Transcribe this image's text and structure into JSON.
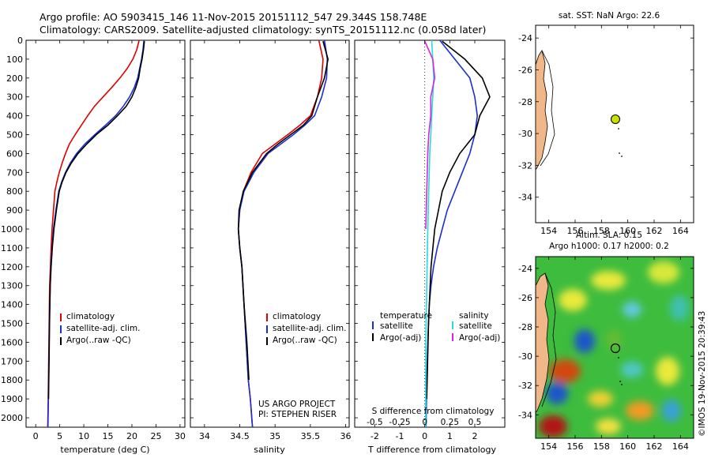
{
  "header": {
    "line1": "Argo profile: AO 5903415_146 11-Nov-2015 20151112_547 29.344S 158.748E",
    "line2": "Climatology: CARS2009. Satellite-adjusted climatology: synTS_20151112.nc (0.058d later)"
  },
  "colors": {
    "climatology": "#dd0000",
    "satellite": "#1a2fd0",
    "argo": "#000000",
    "sat_salinity": "#22dddd",
    "argo_salinity": "#dd22dd",
    "land": "#f0b888"
  },
  "depth_ticks": [
    "0",
    "100",
    "200",
    "300",
    "400",
    "500",
    "600",
    "700",
    "800",
    "900",
    "1000",
    "1100",
    "1200",
    "1300",
    "1400",
    "1500",
    "1600",
    "1700",
    "1800",
    "1900",
    "2000"
  ],
  "legend_profile": [
    "climatology",
    "satellite-adj. clim.",
    "Argo(..raw -QC)"
  ],
  "legend_diff": {
    "temperature_header": "temperature",
    "salinity_header": "salinity",
    "temperature_items": [
      "satellite",
      "Argo(-adj)"
    ],
    "salinity_items": [
      "satellite",
      "Argo(-adj)"
    ]
  },
  "panel_temperature": {
    "xlabel": "temperature (deg C)",
    "xticks": [
      "0",
      "5",
      "10",
      "15",
      "20",
      "25",
      "30"
    ]
  },
  "panel_salinity": {
    "xlabel": "salinity",
    "xticks": [
      "34",
      "34.5",
      "35",
      "35.5",
      "36"
    ],
    "note1": "US ARGO PROJECT",
    "note2": "PI: STEPHEN RISER"
  },
  "panel_diff": {
    "top_label": "S difference from climatology",
    "top_ticks": [
      "-0.5",
      "-0.25",
      "0",
      "0.25",
      "0.5"
    ],
    "bottom_ticks": [
      "-2",
      "-1",
      "0",
      "1",
      "2"
    ],
    "xlabel": "T difference from climatology"
  },
  "map_sst": {
    "title": "sat. SST: NaN Argo: 22.6",
    "yticks": [
      "-24",
      "-26",
      "-28",
      "-30",
      "-32",
      "-34"
    ],
    "xticks": [
      "154",
      "156",
      "158",
      "160",
      "162",
      "164"
    ]
  },
  "map_sla": {
    "title1": "Altim. SLA: 0.15",
    "title2": "Argo h1000: 0.17 h2000: 0.2",
    "yticks": [
      "-24",
      "-26",
      "-28",
      "-30",
      "-32",
      "-34"
    ],
    "xticks": [
      "154",
      "156",
      "158",
      "160",
      "162",
      "164"
    ],
    "side_text": "©IMOS 19-Nov-2015 20:39:43"
  },
  "chart_data": [
    {
      "type": "line",
      "xlabel": "temperature (deg C)",
      "xlim": [
        -2,
        31
      ],
      "ylim": [
        2050,
        0
      ],
      "series": [
        {
          "name": "climatology",
          "x": [
            21.5,
            21,
            20.2,
            19,
            17.5,
            15.8,
            14,
            12.2,
            10.8,
            9.5,
            8.2,
            7,
            6.2,
            5.5,
            4.9,
            4.4,
            4,
            3.7,
            3.4,
            3.2,
            3.05,
            2.9,
            2.8,
            2.7,
            2.6,
            2.5
          ],
          "y": [
            0,
            50,
            100,
            150,
            200,
            250,
            300,
            350,
            400,
            450,
            500,
            550,
            600,
            650,
            700,
            750,
            800,
            900,
            1000,
            1100,
            1200,
            1300,
            1500,
            1700,
            1900,
            2050
          ]
        },
        {
          "name": "satellite-adj. clim.",
          "x": [
            22.5,
            22.3,
            22,
            21.6,
            21.2,
            20.5,
            19.5,
            18.2,
            16.6,
            14.5,
            12.3,
            10.2,
            8.5,
            7.2,
            6.2,
            5.4,
            4.8,
            4.2,
            3.7,
            3.4,
            3.15,
            3,
            2.85,
            2.75,
            2.65,
            2.55
          ],
          "y": [
            0,
            50,
            100,
            150,
            200,
            250,
            300,
            350,
            400,
            450,
            500,
            550,
            600,
            650,
            700,
            750,
            800,
            900,
            1000,
            1100,
            1200,
            1300,
            1500,
            1700,
            1900,
            2050
          ]
        },
        {
          "name": "Argo(..raw -QC)",
          "x": [
            22.6,
            22.4,
            22.1,
            21.7,
            21.4,
            20.8,
            20,
            18.8,
            17,
            15,
            12.6,
            10.6,
            8.8,
            7.4,
            6.3,
            5.5,
            4.9,
            4.3,
            3.8,
            3.45,
            3.2,
            3.02,
            2.88,
            2.77,
            2.67
          ],
          "y": [
            5,
            50,
            100,
            150,
            200,
            250,
            300,
            350,
            400,
            450,
            500,
            550,
            600,
            650,
            700,
            750,
            800,
            900,
            1000,
            1100,
            1200,
            1300,
            1500,
            1700,
            1900
          ]
        }
      ]
    },
    {
      "type": "line",
      "xlabel": "salinity",
      "xlim": [
        33.8,
        36.05
      ],
      "ylim": [
        2050,
        0
      ],
      "series": [
        {
          "name": "climatology",
          "x": [
            35.62,
            35.68,
            35.66,
            35.6,
            35.5,
            35.35,
            35.18,
            35,
            34.82,
            34.66,
            34.55,
            34.5,
            34.48,
            34.5,
            34.53,
            34.56,
            34.59,
            34.62,
            34.65,
            34.68
          ],
          "y": [
            0,
            100,
            200,
            300,
            400,
            450,
            500,
            550,
            600,
            700,
            800,
            900,
            1000,
            1100,
            1200,
            1400,
            1600,
            1800,
            1900,
            2050
          ]
        },
        {
          "name": "satellite-adj. clim.",
          "x": [
            35.7,
            35.74,
            35.73,
            35.66,
            35.56,
            35.42,
            35.26,
            35.08,
            34.9,
            34.7,
            34.56,
            34.5,
            34.48,
            34.5,
            34.53,
            34.56,
            34.59,
            34.62,
            34.65,
            34.68
          ],
          "y": [
            0,
            100,
            200,
            300,
            400,
            450,
            500,
            550,
            600,
            700,
            800,
            900,
            1000,
            1100,
            1200,
            1400,
            1600,
            1800,
            1900,
            2050
          ]
        },
        {
          "name": "Argo(..raw -QC)",
          "x": [
            35.68,
            35.75,
            35.7,
            35.6,
            35.52,
            35.4,
            35.22,
            35.04,
            34.88,
            34.68,
            34.55,
            34.49,
            34.48,
            34.5,
            34.53,
            34.56,
            34.6,
            34.63
          ],
          "y": [
            5,
            100,
            200,
            300,
            400,
            450,
            500,
            550,
            600,
            700,
            800,
            900,
            1000,
            1100,
            1200,
            1400,
            1600,
            1800
          ]
        }
      ]
    },
    {
      "type": "line",
      "xlabel": "T difference from climatology",
      "xlim": [
        -2.8,
        3.2
      ],
      "ylim": [
        2050,
        0
      ],
      "series": [
        {
          "name": "satellite",
          "x": [
            0.6,
            1.2,
            1.8,
            2.0,
            2.1,
            2.0,
            1.8,
            1.5,
            1.2,
            0.9,
            0.7,
            0.5,
            0.35,
            0.25,
            0.18,
            0.12,
            0.08,
            0.05
          ],
          "y": [
            0,
            100,
            200,
            300,
            400,
            500,
            600,
            700,
            800,
            900,
            1000,
            1100,
            1200,
            1300,
            1400,
            1600,
            1800,
            2050
          ]
        },
        {
          "name": "Argo(-adj)",
          "x": [
            0.7,
            1.6,
            2.3,
            2.6,
            2.2,
            2.0,
            1.4,
            1.0,
            0.7,
            0.4,
            0.25,
            0.15,
            0.08
          ],
          "y": [
            5,
            100,
            200,
            300,
            400,
            500,
            600,
            700,
            800,
            1000,
            1200,
            1500,
            1900
          ]
        }
      ]
    },
    {
      "type": "line",
      "xlabel": "S difference from climatology",
      "xlim": [
        -0.7,
        0.8
      ],
      "ylim": [
        2050,
        0
      ],
      "series": [
        {
          "name": "satellite",
          "x": [
            0.07,
            0.08,
            0.09,
            0.08,
            0.07,
            0.06,
            0.05,
            0.04,
            0.03,
            0.02,
            0.01,
            0.01
          ],
          "y": [
            0,
            100,
            200,
            300,
            400,
            500,
            600,
            800,
            1000,
            1300,
            1600,
            2050
          ]
        },
        {
          "name": "Argo(-adj)",
          "x": [
            0.0,
            0.08,
            0.1,
            0.06,
            0.06,
            0.04,
            0.03,
            0.02,
            0.01
          ],
          "y": [
            5,
            100,
            200,
            300,
            400,
            500,
            600,
            800,
            1000
          ]
        }
      ]
    }
  ]
}
